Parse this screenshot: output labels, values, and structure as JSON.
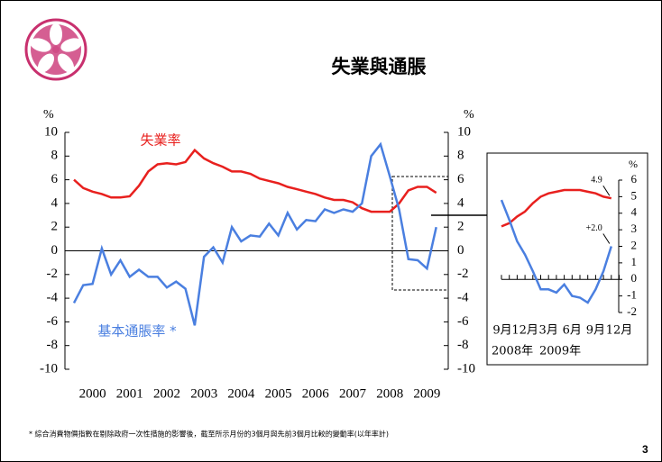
{
  "title": "失業與通脹",
  "footnote": "* 綜合消費物價指數在剔除政府一次性措施的影響後，截至所示月份的3個月與先前3個月比較的變動率(以年率計)",
  "page_number": "3",
  "chart_data": [
    {
      "type": "line",
      "y_unit": "%",
      "x": [
        2000,
        2000.25,
        2000.5,
        2000.75,
        2001,
        2001.25,
        2001.5,
        2001.75,
        2002,
        2002.25,
        2002.5,
        2002.75,
        2003,
        2003.25,
        2003.5,
        2003.75,
        2004,
        2004.25,
        2004.5,
        2004.75,
        2005,
        2005.25,
        2005.5,
        2005.75,
        2006,
        2006.25,
        2006.5,
        2006.75,
        2007,
        2007.25,
        2007.5,
        2007.75,
        2008,
        2008.25,
        2008.5,
        2008.75,
        2009,
        2009.25,
        2009.5,
        2009.75
      ],
      "xlim": [
        2000,
        2010
      ],
      "xticks": [
        {
          "value": 2000.5,
          "label": "2000"
        },
        {
          "value": 2001.5,
          "label": "2001"
        },
        {
          "value": 2002.5,
          "label": "2002"
        },
        {
          "value": 2003.5,
          "label": "2003"
        },
        {
          "value": 2004.5,
          "label": "2004"
        },
        {
          "value": 2005.5,
          "label": "2005"
        },
        {
          "value": 2006.5,
          "label": "2006"
        },
        {
          "value": 2007.5,
          "label": "2007"
        },
        {
          "value": 2008.5,
          "label": "2008"
        },
        {
          "value": 2009.5,
          "label": "2009"
        }
      ],
      "ylim": [
        -10,
        10
      ],
      "yticks": [
        -10,
        -8,
        -6,
        -4,
        -2,
        0,
        2,
        4,
        6,
        8,
        10
      ],
      "series": [
        {
          "name": "失業率",
          "color": "#e8201e",
          "values": [
            6.0,
            5.3,
            5.0,
            4.8,
            4.5,
            4.5,
            4.6,
            5.5,
            6.7,
            7.3,
            7.4,
            7.3,
            7.5,
            8.5,
            7.8,
            7.4,
            7.1,
            6.7,
            6.7,
            6.5,
            6.1,
            5.9,
            5.7,
            5.4,
            5.2,
            5.0,
            4.8,
            4.5,
            4.3,
            4.3,
            4.1,
            3.6,
            3.3,
            3.3,
            3.3,
            4.0,
            5.1,
            5.4,
            5.4,
            4.9
          ]
        },
        {
          "name": "基本通脹率 *",
          "color": "#4a7fe0",
          "values": [
            -4.4,
            -2.9,
            -2.8,
            0.2,
            -2.0,
            -0.8,
            -2.2,
            -1.6,
            -2.2,
            -2.2,
            -3.1,
            -2.6,
            -3.2,
            -6.3,
            -0.5,
            0.3,
            -1.0,
            2.0,
            0.8,
            1.3,
            1.2,
            2.3,
            1.3,
            3.2,
            1.8,
            2.6,
            2.5,
            3.5,
            3.2,
            3.5,
            3.3,
            4.0,
            8.0,
            9.0,
            6.3,
            3.5,
            -0.7,
            -0.8,
            -1.5,
            2.0
          ]
        }
      ]
    },
    {
      "type": "line",
      "y_unit": "%",
      "categories": [
        "9月",
        null,
        null,
        "12月",
        null,
        null,
        "3月",
        null,
        null,
        "6月",
        null,
        null,
        "9月",
        null,
        null,
        "12月"
      ],
      "x_group_labels": [
        "2008年",
        "2009年"
      ],
      "ylim": [
        -2,
        6
      ],
      "yticks": [
        -2,
        -1,
        0,
        1,
        2,
        3,
        4,
        5,
        6
      ],
      "series": [
        {
          "name": "失業率",
          "color": "#e8201e",
          "values": [
            3.2,
            3.4,
            3.8,
            4.1,
            4.6,
            5.0,
            5.2,
            5.3,
            5.4,
            5.4,
            5.4,
            5.3,
            5.2,
            5.0,
            4.9,
            null
          ],
          "value_labels": [
            null,
            null,
            null,
            null,
            null,
            null,
            null,
            null,
            null,
            null,
            null,
            null,
            null,
            null,
            "4.9",
            null
          ]
        },
        {
          "name": "基本通脹率 *",
          "color": "#4a7fe0",
          "values": [
            4.8,
            3.6,
            2.3,
            1.5,
            0.5,
            -0.6,
            -0.6,
            -0.8,
            -0.3,
            -1.0,
            -1.1,
            -1.4,
            -0.6,
            0.5,
            2.0,
            null
          ],
          "value_labels": [
            null,
            null,
            null,
            null,
            null,
            null,
            null,
            null,
            null,
            null,
            null,
            null,
            null,
            null,
            "+2.0",
            null
          ]
        }
      ]
    }
  ]
}
